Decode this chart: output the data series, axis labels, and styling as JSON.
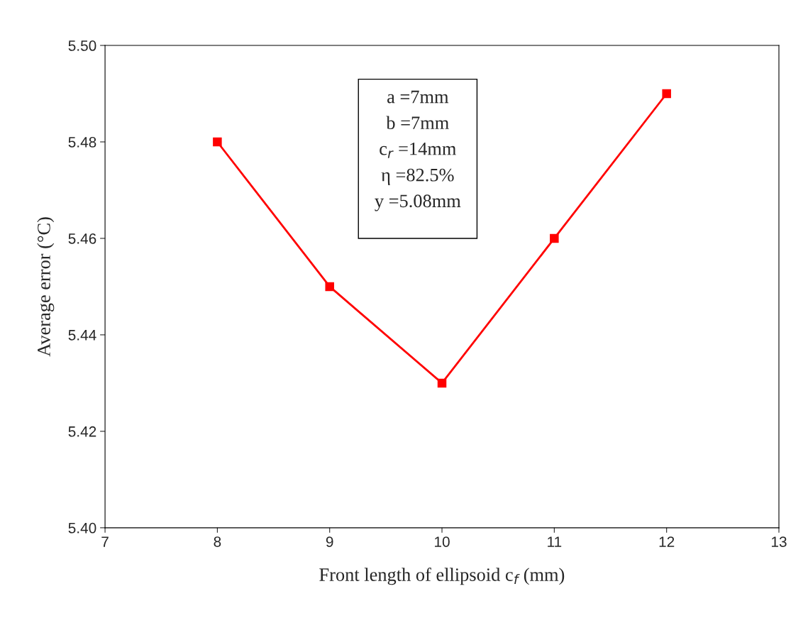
{
  "chart_data": {
    "type": "line",
    "xlabel": "Front length of ellipsoid c$_{f}$ (mm)",
    "ylabel": "Average error (°C)",
    "x": [
      8,
      9,
      10,
      11,
      12
    ],
    "series": [
      {
        "color": "#ff0000",
        "values": [
          5.48,
          5.45,
          5.43,
          5.46,
          5.49
        ]
      }
    ],
    "marker": "square",
    "line_style": "solid",
    "grid": false,
    "legend": false,
    "xlim": [
      7,
      13
    ],
    "xticks": [
      7,
      8,
      9,
      10,
      11,
      12,
      13
    ],
    "ylim": [
      5.4,
      5.5
    ],
    "yticks": [
      {
        "value": 5.4,
        "label": "5.40"
      },
      {
        "value": 5.42,
        "label": "5.42"
      },
      {
        "value": 5.44,
        "label": "5.44"
      },
      {
        "value": 5.46,
        "label": "5.46"
      },
      {
        "value": 5.48,
        "label": "5.48"
      },
      {
        "value": 5.5,
        "label": "5.50"
      }
    ],
    "annotations": [
      "a =7mm",
      "b =7mm",
      "c$_{r}$ =14mm",
      "η =82.5%",
      "y =5.08mm"
    ]
  }
}
